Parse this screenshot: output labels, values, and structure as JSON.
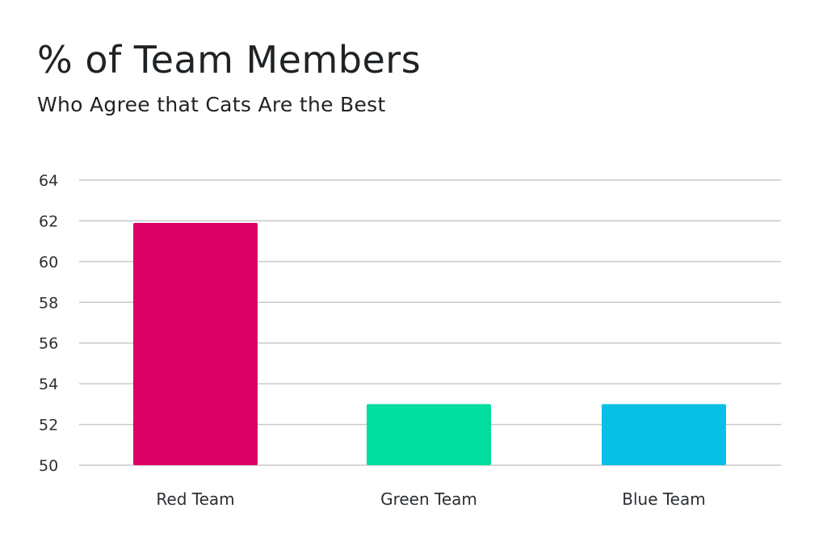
{
  "chart_data": {
    "type": "bar",
    "title": "% of Team Members",
    "subtitle": "Who Agree that Cats Are the Best",
    "xlabel": "",
    "ylabel": "",
    "categories": [
      "Red Team",
      "Green Team",
      "Blue Team"
    ],
    "values": [
      61.9,
      53,
      53
    ],
    "colors": [
      "#dc0065",
      "#00dd9f",
      "#08c0e6"
    ],
    "ylim": [
      50,
      64
    ],
    "yticks": [
      50,
      52,
      54,
      56,
      58,
      60,
      62,
      64
    ],
    "grid": true,
    "legend": "none"
  }
}
